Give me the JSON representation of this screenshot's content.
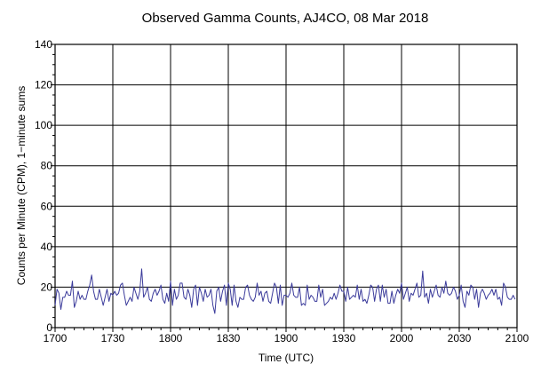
{
  "chart_data": {
    "type": "line",
    "title": "Observed Gamma Counts, AJ4CO, 08 Mar 2018",
    "xlabel": "Time (UTC)",
    "ylabel": "Counts per Minute (CPM), 1−minute sums",
    "x_ticks": [
      "1700",
      "1730",
      "1800",
      "1830",
      "1900",
      "1930",
      "2000",
      "2030",
      "2100"
    ],
    "y_ticks": [
      "0",
      "20",
      "40",
      "60",
      "80",
      "100",
      "120",
      "140"
    ],
    "ylim": [
      0,
      140
    ],
    "xlim_minutes": [
      0,
      240
    ],
    "grid": true,
    "series": [
      {
        "color": "#3b3b9b",
        "x_start_minute": 0,
        "x_step_minutes": 1,
        "values": [
          11,
          19,
          17,
          9,
          15,
          15,
          18,
          16,
          16,
          23,
          10,
          13,
          18,
          14,
          16,
          14,
          14,
          18,
          21,
          26,
          18,
          14,
          14,
          19,
          15,
          11,
          15,
          19,
          13,
          17,
          16,
          18,
          16,
          17,
          21,
          22,
          16,
          11,
          13,
          15,
          13,
          20,
          17,
          14,
          18,
          29,
          15,
          17,
          20,
          14,
          13,
          17,
          19,
          16,
          18,
          21,
          14,
          12,
          17,
          13,
          23,
          11,
          19,
          14,
          16,
          22,
          22,
          15,
          14,
          19,
          16,
          10,
          19,
          21,
          11,
          20,
          17,
          13,
          19,
          15,
          16,
          19,
          11,
          7,
          18,
          20,
          13,
          18,
          21,
          11,
          22,
          19,
          11,
          21,
          13,
          10,
          15,
          14,
          14,
          20,
          21,
          16,
          14,
          13,
          15,
          22,
          16,
          18,
          13,
          17,
          18,
          13,
          12,
          17,
          22,
          20,
          12,
          21,
          11,
          16,
          16,
          15,
          17,
          22,
          16,
          15,
          15,
          20,
          11,
          12,
          11,
          21,
          14,
          16,
          15,
          13,
          13,
          21,
          15,
          19,
          11,
          12,
          13,
          15,
          14,
          17,
          14,
          17,
          21,
          18,
          18,
          13,
          20,
          14,
          15,
          16,
          15,
          21,
          14,
          19,
          13,
          14,
          12,
          16,
          21,
          20,
          13,
          19,
          21,
          13,
          21,
          15,
          19,
          12,
          12,
          18,
          12,
          16,
          19,
          17,
          22,
          14,
          17,
          20,
          13,
          17,
          16,
          19,
          22,
          15,
          16,
          28,
          15,
          17,
          12,
          19,
          15,
          18,
          21,
          16,
          15,
          20,
          17,
          23,
          17,
          16,
          17,
          20,
          18,
          14,
          16,
          21,
          13,
          10,
          18,
          16,
          21,
          20,
          14,
          19,
          10,
          17,
          19,
          17,
          14,
          16,
          17,
          19,
          16,
          19,
          14,
          15,
          11,
          22,
          20,
          15,
          14,
          14,
          16,
          14
        ]
      }
    ]
  }
}
